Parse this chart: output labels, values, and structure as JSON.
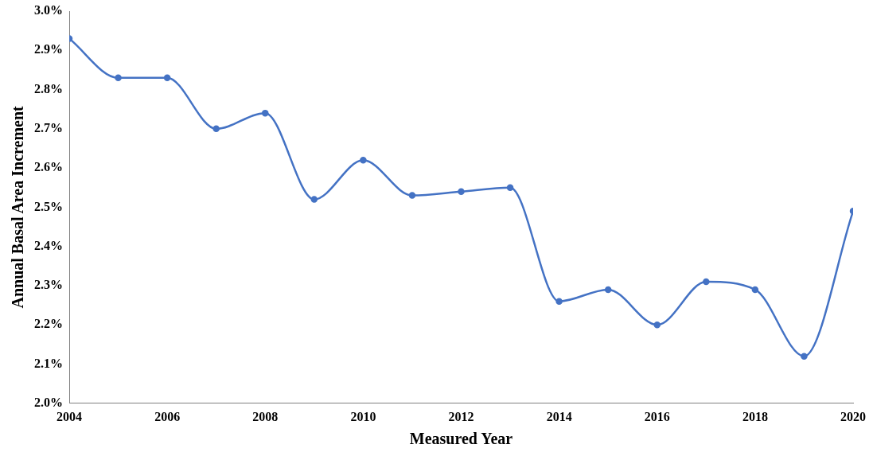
{
  "chart_data": {
    "type": "line",
    "xlabel": "Measured Year",
    "ylabel": "Annual Basal Area Increment",
    "x": [
      2004,
      2005,
      2006,
      2007,
      2008,
      2009,
      2010,
      2011,
      2012,
      2013,
      2014,
      2015,
      2016,
      2017,
      2018,
      2019,
      2020
    ],
    "series": [
      {
        "color": "#4472c4",
        "values": [
          2.93,
          2.83,
          2.83,
          2.7,
          2.74,
          2.52,
          2.62,
          2.53,
          2.54,
          2.55,
          2.26,
          2.29,
          2.2,
          2.31,
          2.29,
          2.12,
          2.49
        ]
      }
    ],
    "xlim": [
      2004,
      2020
    ],
    "xticks": [
      2004,
      2006,
      2008,
      2010,
      2012,
      2014,
      2016,
      2018,
      2020
    ],
    "ylim": [
      2.0,
      3.0
    ],
    "yticks": [
      {
        "value": 2.0,
        "label": "2.0%"
      },
      {
        "value": 2.1,
        "label": "2.1%"
      },
      {
        "value": 2.2,
        "label": "2.2%"
      },
      {
        "value": 2.3,
        "label": "2.3%"
      },
      {
        "value": 2.4,
        "label": "2.4%"
      },
      {
        "value": 2.5,
        "label": "2.5%"
      },
      {
        "value": 2.6,
        "label": "2.6%"
      },
      {
        "value": 2.7,
        "label": "2.7%"
      },
      {
        "value": 2.8,
        "label": "2.8%"
      },
      {
        "value": 2.9,
        "label": "2.9%"
      },
      {
        "value": 3.0,
        "label": "3.0%"
      }
    ],
    "grid": false,
    "legend": false,
    "marker": "circle",
    "line_style": "solid"
  }
}
